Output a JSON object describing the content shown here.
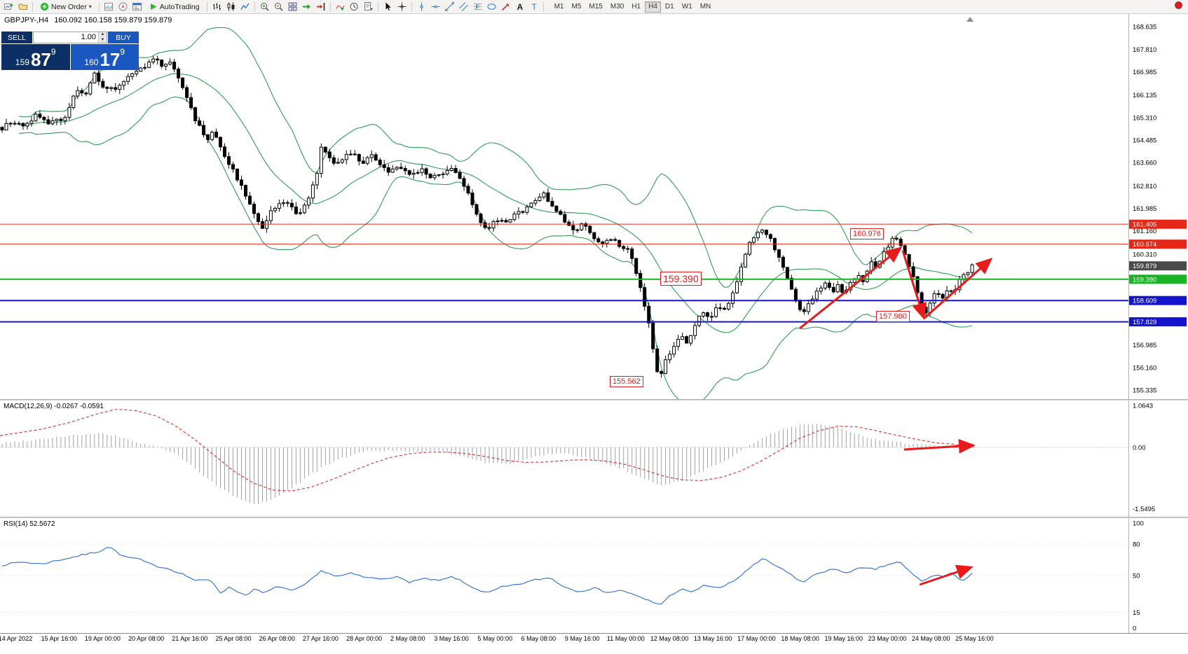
{
  "colors": {
    "accent_red": "#e52718",
    "accent_green": "#18b426",
    "accent_blue": "#1414cf",
    "sell_navy": "#0c2f66",
    "buy_blue": "#1a57c0",
    "band_green": "#2f9e57",
    "macd_signal_red": "#e03a3a",
    "rsi_blue": "#3a77d9",
    "arrow_red": "#e81a1a"
  },
  "toolbar": {
    "new_order_label": "New Order",
    "autotrading_label": "AutoTrading",
    "icon_groups": {
      "g1": [
        "new-chart-icon",
        "profiles-icon"
      ],
      "g3": [
        "market-watch-icon",
        "navigator-icon",
        "terminal-window-icon"
      ],
      "g5": [
        "bar-chart-icon",
        "candle-chart-icon",
        "line-chart-icon"
      ],
      "g6": [
        "zoom-in-icon",
        "zoom-out-icon"
      ],
      "g7": [
        "tile-windows-icon",
        "auto-scroll-icon",
        "chart-shift-icon"
      ],
      "g8": [
        "indicators-icon",
        "periods-icon",
        "templates-icon"
      ],
      "g9": [
        "cursor-icon",
        "crosshair-icon"
      ],
      "g10": [
        "vertical-line-icon",
        "horizontal-line-icon",
        "trendline-icon",
        "channel-icon",
        "fibonacci-icon"
      ],
      "g11": [
        "shapes-icon",
        "arrows-icon",
        "text-icon",
        "label-icon"
      ]
    },
    "timeframes": [
      "M1",
      "M5",
      "M15",
      "M30",
      "H1",
      "H4",
      "D1",
      "W1",
      "MN"
    ],
    "active_timeframe": "H4"
  },
  "chart_header": {
    "symbol": "GBPJPY-,H4",
    "ohlc": "160.092 160.158 159.879 159.879"
  },
  "trade_panel": {
    "sell_label": "SELL",
    "buy_label": "BUY",
    "volume": "1.00",
    "sell_price": {
      "small": "159",
      "big": "87",
      "sup": "9"
    },
    "buy_price": {
      "small": "160",
      "big": "17",
      "sup": "9"
    },
    "spin_up": "▲",
    "spin_down": "▼"
  },
  "annotations": {
    "peak": "160.976",
    "mid": "159.390",
    "low2": "157.980",
    "low1": "155.562"
  },
  "macd": {
    "label": "MACD(12,26,9) -0.0267 -0.0591",
    "scale": [
      {
        "text": "1.0643",
        "v": 1.0643
      },
      {
        "text": "0.00",
        "v": 0
      },
      {
        "text": "-1.5495",
        "v": -1.5495
      }
    ]
  },
  "rsi": {
    "label": "RSI(14) 52.5672",
    "scale": [
      {
        "text": "100",
        "v": 100
      },
      {
        "text": "80",
        "v": 80
      },
      {
        "text": "50",
        "v": 50
      },
      {
        "text": "15",
        "v": 15
      },
      {
        "text": "0",
        "v": 0
      }
    ],
    "level_lines": [
      80,
      50,
      15
    ]
  },
  "time_axis": [
    "14 Apr 2022",
    "15 Apr 16:00",
    "19 Apr 00:00",
    "20 Apr 08:00",
    "21 Apr 16:00",
    "25 Apr 08:00",
    "26 Apr 08:00",
    "27 Apr 16:00",
    "28 Apr 00:00",
    "2 May 08:00",
    "3 May 16:00",
    "5 May 00:00",
    "6 May 08:00",
    "9 May 16:00",
    "11 May 00:00",
    "12 May 08:00",
    "13 May 16:00",
    "17 May 00:00",
    "18 May 08:00",
    "19 May 16:00",
    "23 May 00:00",
    "24 May 08:00",
    "25 May 16:00"
  ],
  "price_axis": {
    "plain": [
      {
        "text": "168.635",
        "p": 168.635
      },
      {
        "text": "167.810",
        "p": 167.81
      },
      {
        "text": "166.985",
        "p": 166.985
      },
      {
        "text": "166.135",
        "p": 166.135
      },
      {
        "text": "165.310",
        "p": 165.31
      },
      {
        "text": "164.485",
        "p": 164.485
      },
      {
        "text": "163.660",
        "p": 163.66
      },
      {
        "text": "162.810",
        "p": 162.81
      },
      {
        "text": "161.985",
        "p": 161.985
      },
      {
        "text": "161.160",
        "p": 161.16
      },
      {
        "text": "160.310",
        "p": 160.31
      },
      {
        "text": "156.985",
        "p": 156.985
      },
      {
        "text": "156.160",
        "p": 156.16
      },
      {
        "text": "155.335",
        "p": 155.335
      }
    ],
    "markers": [
      {
        "text": "161.405",
        "p": 161.405,
        "bg": "#e52718"
      },
      {
        "text": "160.674",
        "p": 160.674,
        "bg": "#e52718"
      },
      {
        "text": "159.879",
        "p": 159.879,
        "bg": "#4a4a4a"
      },
      {
        "text": "159.390",
        "p": 159.39,
        "bg": "#18b426"
      },
      {
        "text": "158.609",
        "p": 158.609,
        "bg": "#1414cf"
      },
      {
        "text": "157.829",
        "p": 157.829,
        "bg": "#1414cf"
      }
    ]
  },
  "chart_data": {
    "type": "candlestick",
    "symbol": "GBPJPY-",
    "timeframe": "H4",
    "title": "GBPJPY-,H4",
    "ohlc_current": {
      "open": 160.092,
      "high": 160.158,
      "low": 159.879,
      "close": 159.879
    },
    "y_axis_range": [
      155.0,
      169.1
    ],
    "candles_count": 232,
    "bollinger": {
      "period": 20,
      "deviation": 2
    },
    "levels": [
      {
        "price": 161.405,
        "color": "#e52718",
        "width": 1
      },
      {
        "price": 160.674,
        "color": "#e52718",
        "width": 1
      },
      {
        "price": 159.39,
        "color": "#18b426",
        "width": 2
      },
      {
        "price": 158.609,
        "color": "#1414cf",
        "width": 2
      },
      {
        "price": 157.829,
        "color": "#1414cf",
        "width": 2
      }
    ],
    "price_path": [
      [
        0,
        164.9
      ],
      [
        0.01,
        165.2
      ],
      [
        0.022,
        165.0
      ],
      [
        0.035,
        165.4
      ],
      [
        0.05,
        165.1
      ],
      [
        0.065,
        165.3
      ],
      [
        0.075,
        166.3
      ],
      [
        0.085,
        166.1
      ],
      [
        0.095,
        166.9
      ],
      [
        0.105,
        166.4
      ],
      [
        0.118,
        166.3
      ],
      [
        0.13,
        166.8
      ],
      [
        0.14,
        167.0
      ],
      [
        0.15,
        167.3
      ],
      [
        0.158,
        167.6
      ],
      [
        0.165,
        167.1
      ],
      [
        0.172,
        167.5
      ],
      [
        0.18,
        166.9
      ],
      [
        0.188,
        166.3
      ],
      [
        0.198,
        165.3
      ],
      [
        0.205,
        164.9
      ],
      [
        0.212,
        164.5
      ],
      [
        0.218,
        164.8
      ],
      [
        0.228,
        164.0
      ],
      [
        0.238,
        163.4
      ],
      [
        0.248,
        162.7
      ],
      [
        0.258,
        161.9
      ],
      [
        0.268,
        161.3
      ],
      [
        0.278,
        161.9
      ],
      [
        0.288,
        162.3
      ],
      [
        0.298,
        162.0
      ],
      [
        0.306,
        161.7
      ],
      [
        0.315,
        162.3
      ],
      [
        0.324,
        163.2
      ],
      [
        0.33,
        164.4
      ],
      [
        0.337,
        163.8
      ],
      [
        0.345,
        163.6
      ],
      [
        0.355,
        163.9
      ],
      [
        0.363,
        164.0
      ],
      [
        0.37,
        163.6
      ],
      [
        0.38,
        164.0
      ],
      [
        0.39,
        163.6
      ],
      [
        0.4,
        163.3
      ],
      [
        0.41,
        163.5
      ],
      [
        0.42,
        163.2
      ],
      [
        0.432,
        163.4
      ],
      [
        0.443,
        163.1
      ],
      [
        0.455,
        163.3
      ],
      [
        0.463,
        163.5
      ],
      [
        0.472,
        163.1
      ],
      [
        0.482,
        162.4
      ],
      [
        0.492,
        161.6
      ],
      [
        0.5,
        161.2
      ],
      [
        0.51,
        161.6
      ],
      [
        0.52,
        161.5
      ],
      [
        0.532,
        161.8
      ],
      [
        0.545,
        162.1
      ],
      [
        0.558,
        162.5
      ],
      [
        0.568,
        162.1
      ],
      [
        0.578,
        161.6
      ],
      [
        0.59,
        161.2
      ],
      [
        0.6,
        161.4
      ],
      [
        0.61,
        160.9
      ],
      [
        0.618,
        160.7
      ],
      [
        0.628,
        160.9
      ],
      [
        0.638,
        160.6
      ],
      [
        0.648,
        160.4
      ],
      [
        0.655,
        159.4
      ],
      [
        0.662,
        158.5
      ],
      [
        0.668,
        157.5
      ],
      [
        0.674,
        156.2
      ],
      [
        0.678,
        155.8
      ],
      [
        0.684,
        156.4
      ],
      [
        0.692,
        156.9
      ],
      [
        0.7,
        157.4
      ],
      [
        0.706,
        157.1
      ],
      [
        0.714,
        157.7
      ],
      [
        0.722,
        158.2
      ],
      [
        0.73,
        157.9
      ],
      [
        0.738,
        158.4
      ],
      [
        0.746,
        158.2
      ],
      [
        0.754,
        158.9
      ],
      [
        0.762,
        159.8
      ],
      [
        0.77,
        160.7
      ],
      [
        0.777,
        161.1
      ],
      [
        0.783,
        161.2
      ],
      [
        0.79,
        161.0
      ],
      [
        0.797,
        160.5
      ],
      [
        0.804,
        159.9
      ],
      [
        0.811,
        159.3
      ],
      [
        0.818,
        158.6
      ],
      [
        0.825,
        158.0
      ],
      [
        0.832,
        158.5
      ],
      [
        0.84,
        158.9
      ],
      [
        0.848,
        159.3
      ],
      [
        0.855,
        158.9
      ],
      [
        0.862,
        159.2
      ],
      [
        0.868,
        158.8
      ],
      [
        0.875,
        159.3
      ],
      [
        0.882,
        159.6
      ],
      [
        0.888,
        159.2
      ],
      [
        0.895,
        160.0
      ],
      [
        0.902,
        159.8
      ],
      [
        0.908,
        160.3
      ],
      [
        0.915,
        160.7
      ],
      [
        0.921,
        161.0
      ],
      [
        0.927,
        160.6
      ],
      [
        0.933,
        160.1
      ],
      [
        0.939,
        159.5
      ],
      [
        0.945,
        158.8
      ],
      [
        0.951,
        158.0
      ],
      [
        0.957,
        158.6
      ],
      [
        0.963,
        158.9
      ],
      [
        0.969,
        158.6
      ],
      [
        0.975,
        159.1
      ],
      [
        0.981,
        158.9
      ],
      [
        0.987,
        159.4
      ],
      [
        0.993,
        159.6
      ],
      [
        1,
        159.88
      ]
    ],
    "macd_series": [
      [
        0,
        0.1,
        0.3
      ],
      [
        0.04,
        0.22,
        0.45
      ],
      [
        0.07,
        0.3,
        0.62
      ],
      [
        0.1,
        0.35,
        0.85
      ],
      [
        0.12,
        0.28,
        0.97
      ],
      [
        0.14,
        0.12,
        0.93
      ],
      [
        0.16,
        0,
        0.8
      ],
      [
        0.18,
        -0.18,
        0.55
      ],
      [
        0.2,
        -0.55,
        0.2
      ],
      [
        0.22,
        -0.95,
        -0.2
      ],
      [
        0.24,
        -1.25,
        -0.6
      ],
      [
        0.26,
        -1.45,
        -0.9
      ],
      [
        0.28,
        -1.3,
        -1.08
      ],
      [
        0.3,
        -1.0,
        -1.1
      ],
      [
        0.32,
        -0.65,
        -1.0
      ],
      [
        0.34,
        -0.38,
        -0.82
      ],
      [
        0.36,
        -0.18,
        -0.62
      ],
      [
        0.38,
        -0.08,
        -0.42
      ],
      [
        0.4,
        -0.08,
        -0.26
      ],
      [
        0.42,
        -0.12,
        -0.16
      ],
      [
        0.44,
        -0.1,
        -0.12
      ],
      [
        0.46,
        -0.14,
        -0.12
      ],
      [
        0.48,
        -0.25,
        -0.16
      ],
      [
        0.5,
        -0.4,
        -0.24
      ],
      [
        0.52,
        -0.42,
        -0.33
      ],
      [
        0.54,
        -0.3,
        -0.38
      ],
      [
        0.56,
        -0.18,
        -0.37
      ],
      [
        0.58,
        -0.16,
        -0.33
      ],
      [
        0.6,
        -0.25,
        -0.31
      ],
      [
        0.62,
        -0.38,
        -0.34
      ],
      [
        0.64,
        -0.55,
        -0.42
      ],
      [
        0.66,
        -0.8,
        -0.56
      ],
      [
        0.68,
        -0.95,
        -0.72
      ],
      [
        0.7,
        -0.85,
        -0.82
      ],
      [
        0.72,
        -0.62,
        -0.84
      ],
      [
        0.74,
        -0.38,
        -0.76
      ],
      [
        0.76,
        -0.12,
        -0.6
      ],
      [
        0.78,
        0.18,
        -0.36
      ],
      [
        0.8,
        0.42,
        -0.08
      ],
      [
        0.82,
        0.56,
        0.22
      ],
      [
        0.84,
        0.6,
        0.42
      ],
      [
        0.86,
        0.5,
        0.54
      ],
      [
        0.88,
        0.34,
        0.52
      ],
      [
        0.9,
        0.2,
        0.42
      ],
      [
        0.92,
        0.14,
        0.31
      ],
      [
        0.94,
        0.08,
        0.21
      ],
      [
        0.96,
        0.06,
        0.12
      ],
      [
        0.98,
        0.05,
        0.08
      ],
      [
        1,
        -0.03,
        0.02
      ]
    ],
    "rsi_series": [
      [
        0,
        60
      ],
      [
        0.02,
        63
      ],
      [
        0.04,
        61
      ],
      [
        0.06,
        65
      ],
      [
        0.08,
        69
      ],
      [
        0.1,
        73
      ],
      [
        0.11,
        78
      ],
      [
        0.125,
        68
      ],
      [
        0.14,
        66
      ],
      [
        0.155,
        60
      ],
      [
        0.17,
        57
      ],
      [
        0.185,
        52
      ],
      [
        0.2,
        45
      ],
      [
        0.215,
        46
      ],
      [
        0.225,
        34
      ],
      [
        0.235,
        39
      ],
      [
        0.25,
        31
      ],
      [
        0.26,
        37
      ],
      [
        0.27,
        33
      ],
      [
        0.285,
        40
      ],
      [
        0.3,
        35
      ],
      [
        0.315,
        43
      ],
      [
        0.33,
        55
      ],
      [
        0.345,
        49
      ],
      [
        0.36,
        52
      ],
      [
        0.375,
        48
      ],
      [
        0.39,
        47
      ],
      [
        0.405,
        49
      ],
      [
        0.42,
        44
      ],
      [
        0.435,
        47
      ],
      [
        0.45,
        45
      ],
      [
        0.465,
        49
      ],
      [
        0.48,
        41
      ],
      [
        0.5,
        33
      ],
      [
        0.515,
        39
      ],
      [
        0.53,
        41
      ],
      [
        0.55,
        46
      ],
      [
        0.565,
        48
      ],
      [
        0.58,
        39
      ],
      [
        0.595,
        35
      ],
      [
        0.61,
        38
      ],
      [
        0.625,
        34
      ],
      [
        0.64,
        36
      ],
      [
        0.655,
        30
      ],
      [
        0.67,
        25
      ],
      [
        0.678,
        22
      ],
      [
        0.69,
        32
      ],
      [
        0.7,
        37
      ],
      [
        0.71,
        34
      ],
      [
        0.725,
        41
      ],
      [
        0.74,
        38
      ],
      [
        0.755,
        45
      ],
      [
        0.77,
        57
      ],
      [
        0.785,
        66
      ],
      [
        0.8,
        58
      ],
      [
        0.815,
        50
      ],
      [
        0.825,
        43
      ],
      [
        0.84,
        52
      ],
      [
        0.855,
        56
      ],
      [
        0.87,
        53
      ],
      [
        0.885,
        57
      ],
      [
        0.9,
        56
      ],
      [
        0.915,
        61
      ],
      [
        0.925,
        63
      ],
      [
        0.94,
        50
      ],
      [
        0.95,
        44
      ],
      [
        0.96,
        51
      ],
      [
        0.97,
        49
      ],
      [
        0.98,
        53
      ],
      [
        0.985,
        46
      ],
      [
        0.99,
        45
      ],
      [
        1,
        52.6
      ]
    ],
    "arrows": {
      "price": [
        [
          1141,
          449,
          1285,
          334
        ],
        [
          1288,
          338,
          1318,
          434
        ],
        [
          1318,
          435,
          1414,
          350
        ]
      ],
      "macd": [
        [
          1290,
          70,
          1389,
          64
        ]
      ],
      "rsi": [
        [
          1312,
          95,
          1386,
          70
        ]
      ]
    }
  }
}
